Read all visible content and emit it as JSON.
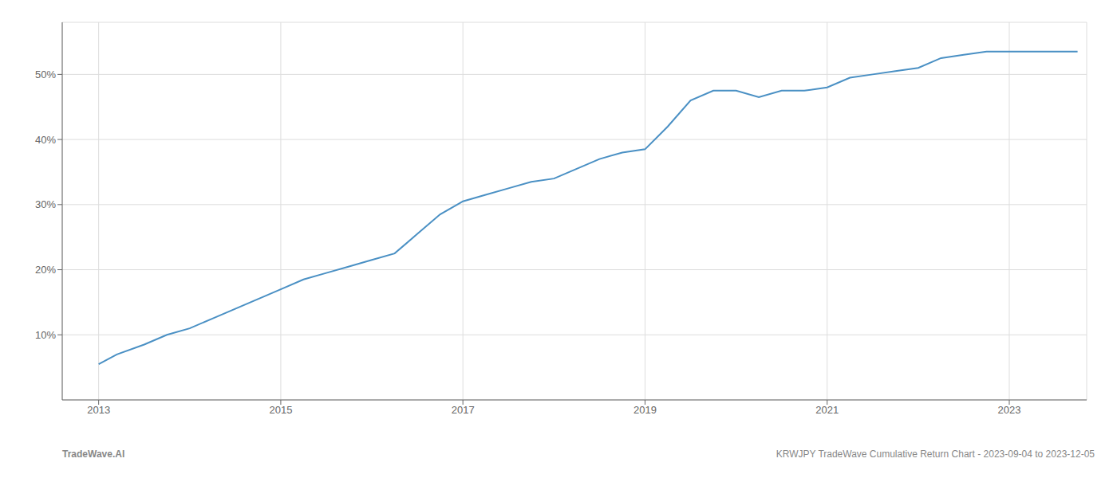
{
  "chart_data": {
    "type": "line",
    "annotations": [
      "TradeWave.AI",
      "KRWJPY TradeWave Cumulative Return Chart - 2023-09-04 to 2023-12-05"
    ],
    "x": [
      2013.0,
      2013.2,
      2013.5,
      2013.75,
      2014.0,
      2014.25,
      2014.5,
      2014.75,
      2015.0,
      2015.25,
      2015.5,
      2015.75,
      2016.0,
      2016.25,
      2016.5,
      2016.75,
      2017.0,
      2017.25,
      2017.5,
      2017.75,
      2018.0,
      2018.25,
      2018.5,
      2018.75,
      2019.0,
      2019.25,
      2019.5,
      2019.75,
      2020.0,
      2020.25,
      2020.5,
      2020.75,
      2021.0,
      2021.25,
      2021.5,
      2021.75,
      2022.0,
      2022.25,
      2022.5,
      2022.75,
      2023.0,
      2023.25,
      2023.5,
      2023.75
    ],
    "values": [
      5.5,
      7.0,
      8.5,
      10.0,
      11.0,
      12.5,
      14.0,
      15.5,
      17.0,
      18.5,
      19.5,
      20.5,
      21.5,
      22.5,
      25.5,
      28.5,
      30.5,
      31.5,
      32.5,
      33.5,
      34.0,
      35.5,
      37.0,
      38.0,
      38.5,
      42.0,
      46.0,
      47.5,
      47.5,
      46.5,
      47.5,
      47.5,
      48.0,
      49.5,
      50.0,
      50.5,
      51.0,
      52.5,
      53.0,
      53.5,
      53.5,
      53.5,
      53.5,
      53.5
    ],
    "color": "#4a90c4",
    "xlim": [
      2012.6,
      2023.85
    ],
    "ylim": [
      0,
      58
    ],
    "xticks": [
      2013,
      2015,
      2017,
      2019,
      2021,
      2023
    ],
    "yticks": [
      {
        "value": 10,
        "label": "10%"
      },
      {
        "value": 20,
        "label": "20%"
      },
      {
        "value": 30,
        "label": "30%"
      },
      {
        "value": 40,
        "label": "40%"
      },
      {
        "value": 50,
        "label": "50%"
      }
    ],
    "grid": true
  }
}
